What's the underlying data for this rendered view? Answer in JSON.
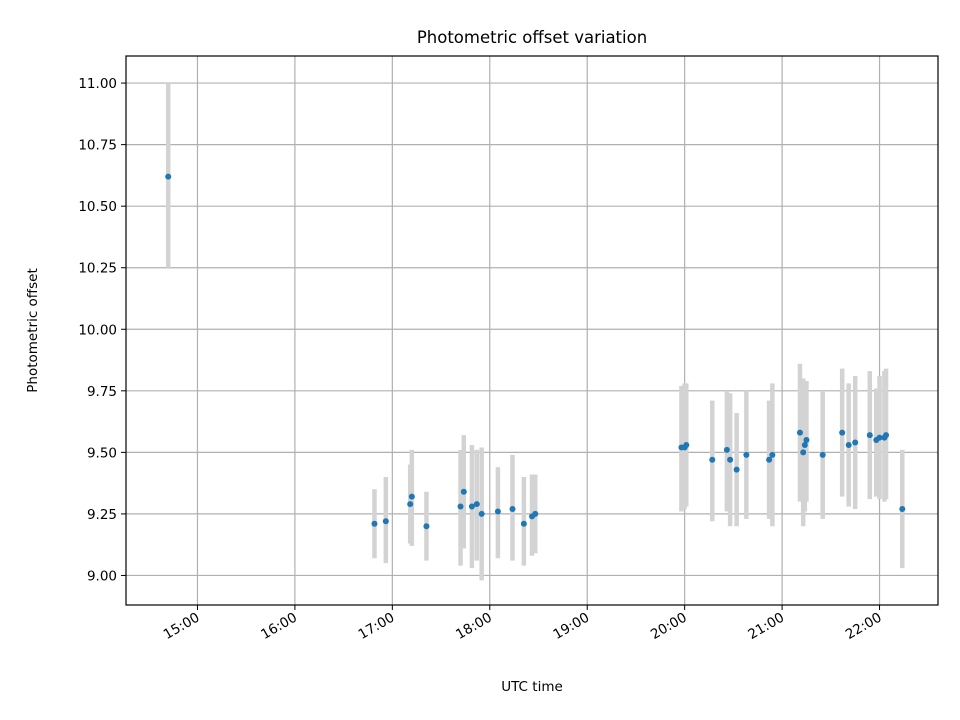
{
  "chart_data": {
    "type": "scatter",
    "title": "Photometric offset variation",
    "xlabel": "UTC time",
    "ylabel": "Photometric offset",
    "grid": true,
    "legend": "none",
    "xlim": [
      "14:16",
      "22:36"
    ],
    "ylim": [
      8.88,
      11.11
    ],
    "xticks": [
      "15:00",
      "16:00",
      "17:00",
      "18:00",
      "19:00",
      "20:00",
      "21:00",
      "22:00"
    ],
    "yticks": [
      "9.00",
      "9.25",
      "9.50",
      "9.75",
      "10.00",
      "10.25",
      "10.50",
      "10.75",
      "11.00"
    ],
    "colors": {
      "point": "#1f77b4",
      "errorbar": "#d3d3d3",
      "grid": "#b0b0b0"
    },
    "series": [
      {
        "points": [
          {
            "x": "14:42",
            "y": 10.62,
            "ymin": 10.25,
            "ymax": 11.0
          },
          {
            "x": "16:49",
            "y": 9.21,
            "ymin": 9.07,
            "ymax": 9.35
          },
          {
            "x": "16:56",
            "y": 9.22,
            "ymin": 9.05,
            "ymax": 9.4
          },
          {
            "x": "17:11",
            "y": 9.29,
            "ymin": 9.13,
            "ymax": 9.45
          },
          {
            "x": "17:12",
            "y": 9.32,
            "ymin": 9.12,
            "ymax": 9.51
          },
          {
            "x": "17:21",
            "y": 9.2,
            "ymin": 9.06,
            "ymax": 9.34
          },
          {
            "x": "17:42",
            "y": 9.28,
            "ymin": 9.04,
            "ymax": 9.51
          },
          {
            "x": "17:44",
            "y": 9.34,
            "ymin": 9.11,
            "ymax": 9.57
          },
          {
            "x": "17:49",
            "y": 9.28,
            "ymin": 9.03,
            "ymax": 9.53
          },
          {
            "x": "17:52",
            "y": 9.29,
            "ymin": 9.06,
            "ymax": 9.51
          },
          {
            "x": "17:55",
            "y": 9.25,
            "ymin": 8.98,
            "ymax": 9.52
          },
          {
            "x": "18:05",
            "y": 9.26,
            "ymin": 9.07,
            "ymax": 9.44
          },
          {
            "x": "18:14",
            "y": 9.27,
            "ymin": 9.06,
            "ymax": 9.49
          },
          {
            "x": "18:21",
            "y": 9.21,
            "ymin": 9.04,
            "ymax": 9.4
          },
          {
            "x": "18:26",
            "y": 9.24,
            "ymin": 9.08,
            "ymax": 9.41
          },
          {
            "x": "18:28",
            "y": 9.25,
            "ymin": 9.09,
            "ymax": 9.41
          },
          {
            "x": "19:58",
            "y": 9.52,
            "ymin": 9.26,
            "ymax": 9.77
          },
          {
            "x": "20:00",
            "y": 9.52,
            "ymin": 9.27,
            "ymax": 9.78
          },
          {
            "x": "20:01",
            "y": 9.53,
            "ymin": 9.28,
            "ymax": 9.78
          },
          {
            "x": "20:17",
            "y": 9.47,
            "ymin": 9.22,
            "ymax": 9.71
          },
          {
            "x": "20:26",
            "y": 9.51,
            "ymin": 9.26,
            "ymax": 9.75
          },
          {
            "x": "20:28",
            "y": 9.47,
            "ymin": 9.2,
            "ymax": 9.74
          },
          {
            "x": "20:32",
            "y": 9.43,
            "ymin": 9.2,
            "ymax": 9.66
          },
          {
            "x": "20:38",
            "y": 9.49,
            "ymin": 9.23,
            "ymax": 9.75
          },
          {
            "x": "20:52",
            "y": 9.47,
            "ymin": 9.23,
            "ymax": 9.71
          },
          {
            "x": "20:54",
            "y": 9.49,
            "ymin": 9.2,
            "ymax": 9.78
          },
          {
            "x": "21:11",
            "y": 9.58,
            "ymin": 9.3,
            "ymax": 9.86
          },
          {
            "x": "21:13",
            "y": 9.5,
            "ymin": 9.2,
            "ymax": 9.8
          },
          {
            "x": "21:14",
            "y": 9.53,
            "ymin": 9.26,
            "ymax": 9.79
          },
          {
            "x": "21:15",
            "y": 9.55,
            "ymin": 9.3,
            "ymax": 9.79
          },
          {
            "x": "21:25",
            "y": 9.49,
            "ymin": 9.23,
            "ymax": 9.75
          },
          {
            "x": "21:37",
            "y": 9.58,
            "ymin": 9.32,
            "ymax": 9.84
          },
          {
            "x": "21:41",
            "y": 9.53,
            "ymin": 9.28,
            "ymax": 9.78
          },
          {
            "x": "21:45",
            "y": 9.54,
            "ymin": 9.27,
            "ymax": 9.81
          },
          {
            "x": "21:54",
            "y": 9.57,
            "ymin": 9.31,
            "ymax": 9.83
          },
          {
            "x": "21:58",
            "y": 9.55,
            "ymin": 9.32,
            "ymax": 9.76
          },
          {
            "x": "22:00",
            "y": 9.56,
            "ymin": 9.31,
            "ymax": 9.81
          },
          {
            "x": "22:03",
            "y": 9.56,
            "ymin": 9.3,
            "ymax": 9.83
          },
          {
            "x": "22:04",
            "y": 9.57,
            "ymin": 9.31,
            "ymax": 9.84
          },
          {
            "x": "22:14",
            "y": 9.27,
            "ymin": 9.03,
            "ymax": 9.51
          }
        ]
      }
    ]
  }
}
